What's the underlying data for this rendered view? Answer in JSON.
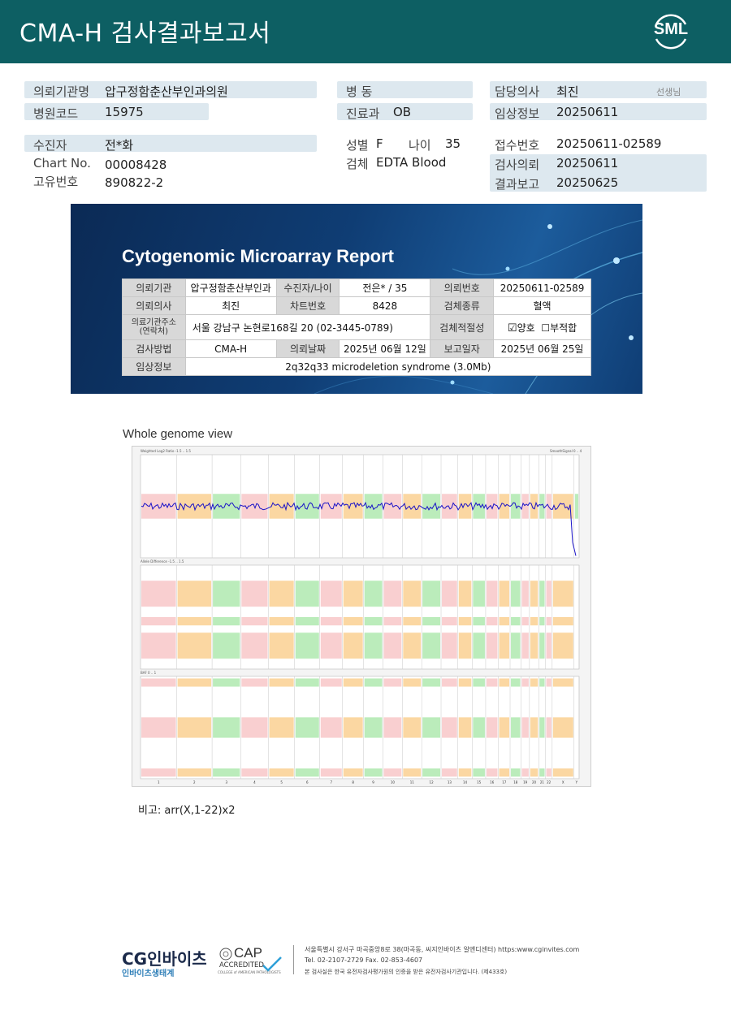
{
  "header": {
    "title": "CMA-H 검사결과보고서",
    "logo": "SML"
  },
  "patient_info": {
    "institution_label": "의뢰기관명",
    "institution": "압구정함춘산부인과의원",
    "hospital_code_label": "병원코드",
    "hospital_code": "15975",
    "ward_label": "병  동",
    "ward": "",
    "dept_label": "진료과",
    "dept": "OB",
    "doctor_label": "담당의사",
    "doctor": "최진",
    "doctor_suffix": "선생님",
    "clinical_label": "임상정보",
    "clinical": "20250611",
    "patient_label": "수진자",
    "patient": "전*화",
    "chart_label": "Chart No.",
    "chart": "00008428",
    "unique_label": "고유번호",
    "unique": "890822-2",
    "sex_label": "성별",
    "sex": "F",
    "age_label": "나이",
    "age": "35",
    "specimen_label": "검체",
    "specimen": "EDTA Blood",
    "receipt_label": "접수번호",
    "receipt": "20250611-02589",
    "request_label": "검사의뢰",
    "request": "20250611",
    "result_label": "결과보고",
    "result": "20250625"
  },
  "report": {
    "title": "Cytogenomic Microarray Report",
    "r1": [
      "의뢰기관",
      "압구정함춘산부인과",
      "수진자/나이",
      "전은* / 35",
      "의뢰번호",
      "20250611-02589"
    ],
    "r2": [
      "의뢰의사",
      "최진",
      "차트번호",
      "8428",
      "검체종류",
      "혈액"
    ],
    "r3_label": "의료기관주소",
    "r3_label2": "(연락처)",
    "address": "서울 강남구 논현로168길 20 (02-3445-0789)",
    "r3_label3": "검체적절성",
    "adequate": "양호",
    "inadequate": "부적합",
    "r4": [
      "검사방법",
      "CMA-H",
      "의뢰날짜",
      "2025년 06월 12일",
      "보고일자",
      "2025년 06월 25일"
    ],
    "r5_label": "임상정보",
    "clinical_info": "2q32q33 microdeletion syndrome (3.0Mb)"
  },
  "genome_view": {
    "title": "Whole genome view",
    "panel1_label": "Weighted Log2 Ratio -1.5 .. 1.5",
    "panel1_right_label": "SmoothSignal 0 .. 4",
    "panel2_label": "Allele Difference -1.5 .. 1.5",
    "panel3_label": "BAF 0 .. 1",
    "chromosomes": [
      "1",
      "2",
      "3",
      "4",
      "5",
      "6",
      "7",
      "8",
      "9",
      "10",
      "11",
      "12",
      "13",
      "14",
      "15",
      "16",
      "17",
      "18",
      "19",
      "20",
      "21",
      "22",
      "X",
      "Y"
    ],
    "colors": {
      "pink": "#f4a8aa",
      "orange": "#f7b655",
      "green": "#84dc84",
      "blue": "#1a12c8"
    }
  },
  "remark": "비고: arr(X,1-22)x2",
  "footer": {
    "company": "CG인바이츠",
    "company_sub": "인바이츠생태계",
    "cap": "CAP",
    "cap_sub": "ACCREDITED",
    "cap_small": "COLLEGE of AMERICAN PATHOLOGISTS",
    "address": "서울특별시 강서구 마곡중앙8로 38(마곡동, 씨지인바이츠 알앤디센터)  https:www.cginvites.com",
    "phone": "Tel. 02-2107-2729   Fax. 02-853-4607",
    "note": "본 검사실은 한국 유전자검사평가원의 인증을 받은 유전자검사기관입니다. (제433호)"
  }
}
